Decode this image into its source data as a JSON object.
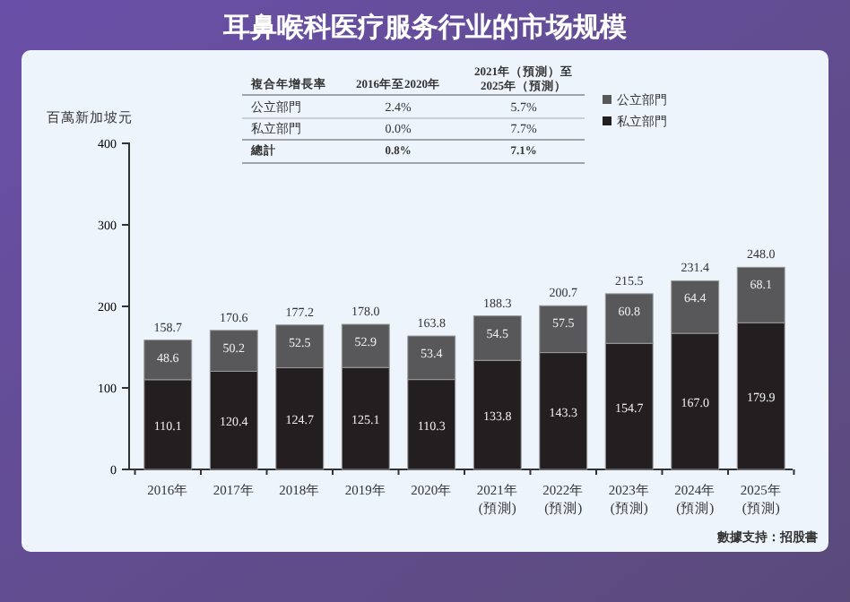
{
  "chart_data": {
    "type": "bar",
    "title": "耳鼻喉科医疗服务行业的市场规模",
    "ylabel": "百萬新加坡元",
    "categories": [
      "2016年",
      "2017年",
      "2018年",
      "2019年",
      "2020年",
      "2021年\n(預測)",
      "2022年\n(預測)",
      "2023年\n(預測)",
      "2024年\n(預測)",
      "2025年\n(預測)"
    ],
    "stacked": true,
    "series": [
      {
        "name": "私立部門",
        "color": "#231f20",
        "values": [
          110.1,
          120.4,
          124.7,
          125.1,
          110.3,
          133.8,
          143.3,
          154.7,
          167.0,
          179.9
        ],
        "value_labels": [
          "110.1",
          "120.4",
          "124.7",
          "125.1",
          "110.3",
          "133.8",
          "143.3",
          "154.7",
          "167.0",
          "179.9"
        ]
      },
      {
        "name": "公立部門",
        "color": "#58585a",
        "values": [
          48.6,
          50.2,
          52.5,
          52.9,
          53.4,
          54.5,
          57.5,
          60.8,
          64.4,
          68.1
        ],
        "value_labels": [
          "48.6",
          "50.2",
          "52.5",
          "52.9",
          "53.4",
          "54.5",
          "57.5",
          "60.8",
          "64.4",
          "68.1"
        ]
      }
    ],
    "totals": [
      "158.7",
      "170.6",
      "177.2",
      "178.0",
      "163.8",
      "188.3",
      "200.7",
      "215.5",
      "231.4",
      "248.0"
    ],
    "ylim": [
      0,
      400
    ],
    "yticks": [
      0,
      100,
      200,
      300,
      400
    ],
    "legend": "top right",
    "annotations": [
      "複合年增長率",
      "2016年至2020年",
      "2021年（預測）至\n2025年（預測）",
      "公立部門",
      "2.4%",
      "5.7%",
      "私立部門",
      "0.0%",
      "7.7%",
      "總計",
      "0.8%",
      "7.1%",
      "數據支持：招股書"
    ]
  }
}
